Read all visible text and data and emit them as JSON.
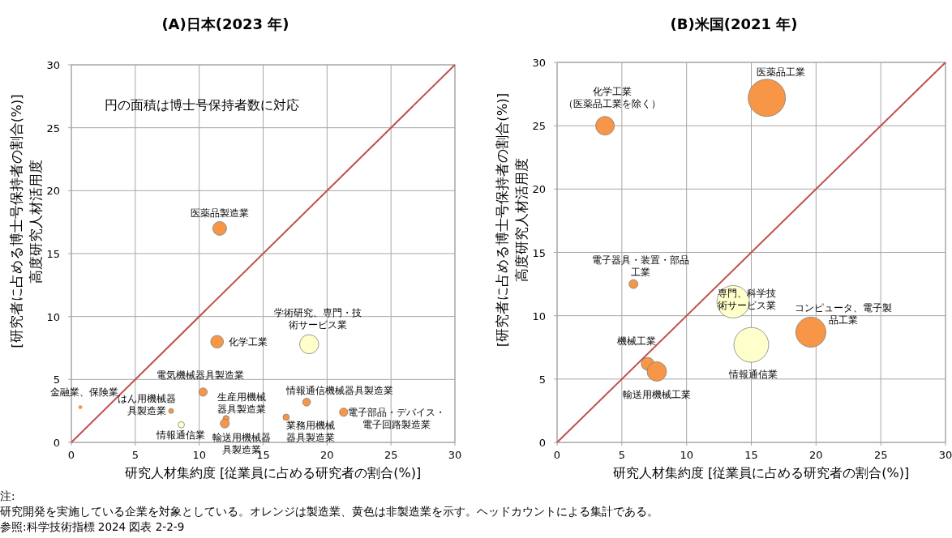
{
  "chart_data": [
    {
      "type": "bubble",
      "title": "(A)日本(2023 年)",
      "xlabel": "研究人材集約度 [従業員に占める研究者の割合(%)]",
      "ylabel": "高度研究人材活用度 [研究者に占める博士号保持者の割合(%)]",
      "xlim": [
        0,
        30
      ],
      "ylim": [
        0,
        30
      ],
      "xticks": [
        0,
        5,
        10,
        15,
        20,
        25,
        30
      ],
      "yticks": [
        0,
        5,
        10,
        15,
        20,
        25,
        30
      ],
      "grid": true,
      "annotations": [
        "円の面積は博士号保持者数に対応"
      ],
      "series": [
        {
          "name": "医薬品製造業",
          "color": "#f79646",
          "x": [
            11.6
          ],
          "values": [
            17.0
          ],
          "sizes": [
            0.52
          ]
        },
        {
          "name": "化学工業",
          "color": "#f79646",
          "x": [
            11.4
          ],
          "values": [
            8.0
          ],
          "sizes": [
            0.44
          ]
        },
        {
          "name": "学術研究、専門・技術サービス業",
          "color": "#ffffcc",
          "x": [
            18.6
          ],
          "values": [
            7.8
          ],
          "sizes": [
            1
          ]
        },
        {
          "name": "電気機械器具製造業",
          "color": "#f79646",
          "x": [
            10.3
          ],
          "values": [
            4.0
          ],
          "sizes": [
            0.19
          ]
        },
        {
          "name": "金融業、保険業",
          "color": "#f79646",
          "x": [
            0.7
          ],
          "values": [
            2.8
          ],
          "sizes": [
            0.03
          ]
        },
        {
          "name": "はん用機械器具製造業",
          "color": "#f79646",
          "x": [
            7.8
          ],
          "values": [
            2.5
          ],
          "sizes": [
            0.065
          ]
        },
        {
          "name": "情報通信業",
          "color": "#ffffcc",
          "x": [
            8.6
          ],
          "values": [
            1.4
          ],
          "sizes": [
            0.11
          ]
        },
        {
          "name": "生産用機械器具製造業",
          "color": "#f79646",
          "x": [
            12.1
          ],
          "values": [
            1.9
          ],
          "sizes": [
            0.1
          ]
        },
        {
          "name": "輸送用機械器具製造業",
          "color": "#f79646",
          "x": [
            12.0
          ],
          "values": [
            1.5
          ],
          "sizes": [
            0.22
          ]
        },
        {
          "name": "業務用機械器具製造業",
          "color": "#f79646",
          "x": [
            16.8
          ],
          "values": [
            2.0
          ],
          "sizes": [
            0.11
          ]
        },
        {
          "name": "情報通信機械器具製造業",
          "color": "#f79646",
          "x": [
            18.4
          ],
          "values": [
            3.2
          ],
          "sizes": [
            0.17
          ]
        },
        {
          "name": "電子部品・デバイス・電子回路製造業",
          "color": "#f79646",
          "x": [
            21.3
          ],
          "values": [
            2.4
          ],
          "sizes": [
            0.19
          ]
        },
        {
          "type": "line",
          "color": "#c0504d",
          "x": [
            0,
            30
          ],
          "values": [
            0,
            30
          ]
        }
      ]
    },
    {
      "type": "bubble",
      "title": "(B)米国(2021 年)",
      "xlabel": "研究人材集約度 [従業員に占める研究者の割合(%)]",
      "ylabel": "高度研究人材活用度 [研究者に占める博士号保持者の割合(%)]",
      "xlim": [
        0,
        30
      ],
      "ylim": [
        0,
        30
      ],
      "xticks": [
        0,
        5,
        10,
        15,
        20,
        25,
        30
      ],
      "yticks": [
        0,
        5,
        10,
        15,
        20,
        25,
        30
      ],
      "grid": true,
      "series": [
        {
          "name": "化学工業（医薬品工業を除く）",
          "color": "#f79646",
          "x": [
            3.7
          ],
          "values": [
            25.0
          ],
          "sizes": [
            0.25
          ]
        },
        {
          "name": "医薬品工業",
          "color": "#f79646",
          "x": [
            16.2
          ],
          "values": [
            27.2
          ],
          "sizes": [
            1
          ]
        },
        {
          "name": "電子器具・装置・部品工業",
          "color": "#f79646",
          "x": [
            5.9
          ],
          "values": [
            12.5
          ],
          "sizes": [
            0.057
          ]
        },
        {
          "name": "専門、科学技術サービス業",
          "color": "#ffffcc",
          "x": [
            13.6
          ],
          "values": [
            11.1
          ],
          "sizes": [
            0.76
          ]
        },
        {
          "name": "情報通信業",
          "color": "#ffffcc",
          "x": [
            15.0
          ],
          "values": [
            7.7
          ],
          "sizes": [
            0.87
          ]
        },
        {
          "name": "コンピュータ、電子製品工業",
          "color": "#f79646",
          "x": [
            19.6
          ],
          "values": [
            8.7
          ],
          "sizes": [
            0.65
          ]
        },
        {
          "name": "機械工業",
          "color": "#f79646",
          "x": [
            7.0
          ],
          "values": [
            6.2
          ],
          "sizes": [
            0.12
          ]
        },
        {
          "name": "輸送用機械工業",
          "color": "#f79646",
          "x": [
            7.7
          ],
          "values": [
            5.6
          ],
          "sizes": [
            0.27
          ]
        },
        {
          "type": "line",
          "color": "#c0504d",
          "x": [
            0,
            30
          ],
          "values": [
            0,
            30
          ]
        }
      ]
    },
    {
      "type": "other",
      "annotations": [
        "注:",
        "研究開発を実施している企業を対象としている。オレンジは製造業、黄色は非製造業を示す。ヘッドカウントによる集計である。",
        "参照:科学技術指標 2024 図表 2-2-9"
      ]
    }
  ]
}
